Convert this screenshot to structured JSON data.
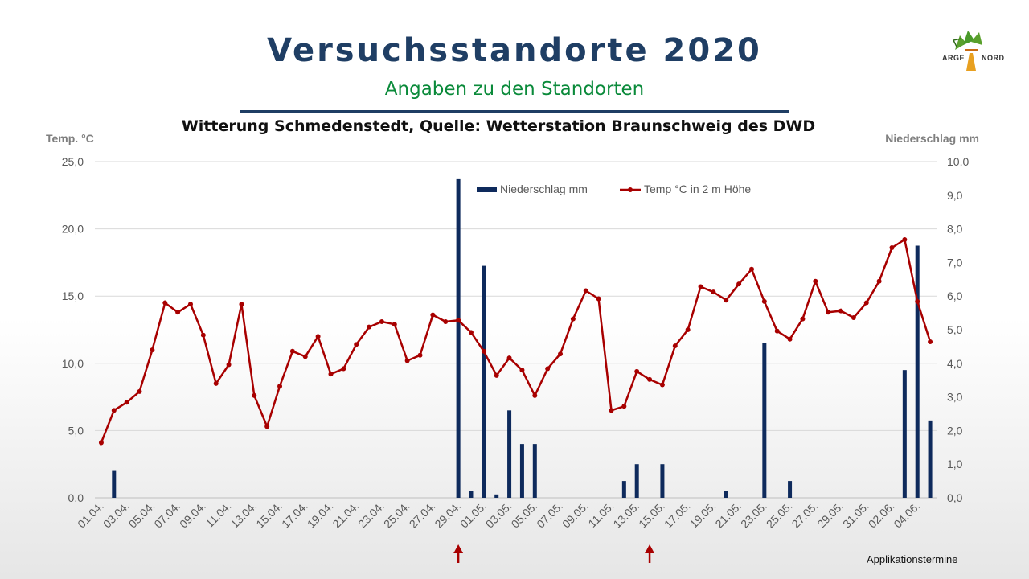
{
  "header": {
    "title": "Versuchsstandorte 2020",
    "subtitle": "Angaben zu den Standorten"
  },
  "logo": {
    "text_left": "ARGE",
    "text_right": "NORD"
  },
  "footer": {
    "applikation_label": "Applikationstermine"
  },
  "chart_data": {
    "type": "bar+line",
    "title": "Witterung Schmedenstedt, Quelle: Wetterstation Braunschweig des DWD",
    "y_left_label": "Temp. °C",
    "y_right_label": "Niederschlag mm",
    "ylim_left": [
      0,
      25
    ],
    "ylim_right": [
      0,
      10
    ],
    "y_left_ticks": [
      "0,0",
      "5,0",
      "10,0",
      "15,0",
      "20,0",
      "25,0"
    ],
    "y_right_ticks": [
      "0,0",
      "1,0",
      "2,0",
      "3,0",
      "4,0",
      "5,0",
      "6,0",
      "7,0",
      "8,0",
      "9,0",
      "10,0"
    ],
    "grid": true,
    "legend_position": "top",
    "x_tick_labels": [
      "01.04.",
      "03.04.",
      "05.04.",
      "07.04.",
      "09.04.",
      "11.04.",
      "13.04.",
      "15.04.",
      "17.04.",
      "19.04.",
      "21.04.",
      "23.04.",
      "25.04.",
      "27.04.",
      "29.04.",
      "01.05.",
      "03.05.",
      "05.05.",
      "07.05.",
      "09.05.",
      "11.05.",
      "13.05.",
      "15.05.",
      "17.05.",
      "19.05.",
      "21.05.",
      "23.05.",
      "25.05.",
      "27.05.",
      "29.05.",
      "31.05.",
      "02.06.",
      "04.06."
    ],
    "series": [
      {
        "name": "Niederschlag mm",
        "type": "bar",
        "axis": "right",
        "color": "#0e2a5c",
        "values": [
          0,
          0.8,
          0,
          0,
          0,
          0,
          0,
          0,
          0,
          0,
          0,
          0,
          0,
          0,
          0,
          0,
          0,
          0,
          0,
          0,
          0,
          0,
          0,
          0,
          0,
          0,
          0,
          0,
          9.5,
          0.2,
          6.9,
          0.1,
          2.6,
          1.6,
          1.6,
          0,
          0,
          0,
          0,
          0,
          0,
          0.5,
          1.0,
          0,
          1.0,
          0,
          0,
          0,
          0,
          0.2,
          0,
          0,
          4.6,
          0,
          0.5,
          0,
          0,
          0,
          0,
          0,
          0,
          0,
          0,
          3.8,
          7.5,
          2.3
        ]
      },
      {
        "name": "Temp °C in 2 m Höhe",
        "type": "line",
        "axis": "left",
        "color": "#a80000",
        "values": [
          4.1,
          6.5,
          7.1,
          7.9,
          11.0,
          14.5,
          13.8,
          14.4,
          12.1,
          8.5,
          9.9,
          14.4,
          7.6,
          5.3,
          8.3,
          10.9,
          10.5,
          12.0,
          9.2,
          9.6,
          11.4,
          12.7,
          13.1,
          12.9,
          10.2,
          10.6,
          13.6,
          13.1,
          13.2,
          12.3,
          10.9,
          9.1,
          10.4,
          9.5,
          7.6,
          9.6,
          10.7,
          13.3,
          15.4,
          14.8,
          6.5,
          6.8,
          9.4,
          8.8,
          8.4,
          11.3,
          12.5,
          15.7,
          15.3,
          14.7,
          15.9,
          17.0,
          14.6,
          12.4,
          11.8,
          13.3,
          16.1,
          13.8,
          13.9,
          13.4,
          14.5,
          16.1,
          18.6,
          19.2,
          14.6,
          11.6
        ]
      }
    ],
    "application_markers": [
      {
        "date": "29.04."
      },
      {
        "date": "14.05."
      }
    ]
  }
}
